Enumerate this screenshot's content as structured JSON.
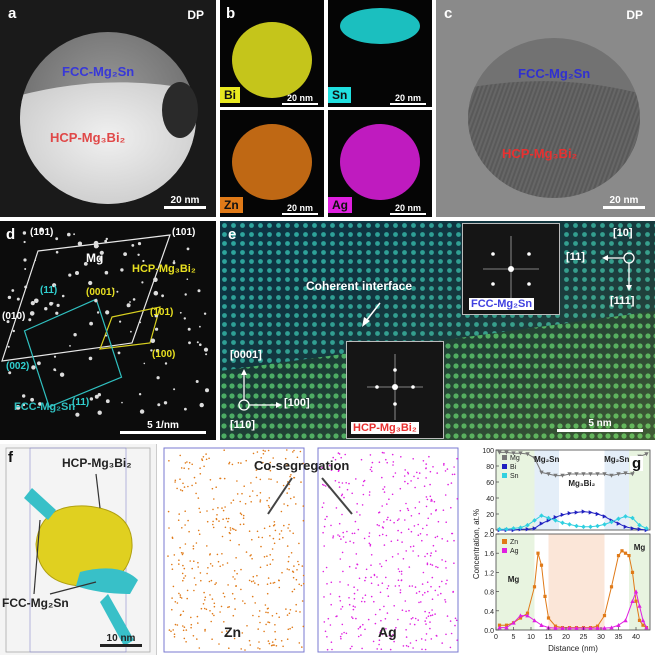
{
  "panel_a": {
    "label": "a",
    "mode": "DP",
    "phase_top": "FCC-Mg₂Sn",
    "phase_bottom": "HCP-Mg₃Bi₂",
    "scale": "20 nm"
  },
  "panel_b": {
    "label": "b",
    "maps": [
      {
        "element": "Bi",
        "color": "#e8e820",
        "scale": "20 nm"
      },
      {
        "element": "Sn",
        "color": "#20e0e0",
        "scale": "20 nm"
      },
      {
        "element": "Zn",
        "color": "#e07a18",
        "scale": "20 nm"
      },
      {
        "element": "Ag",
        "color": "#e020e0",
        "scale": "20 nm"
      }
    ]
  },
  "panel_c": {
    "label": "c",
    "mode": "DP",
    "phase_top": "FCC-Mg₂Sn",
    "phase_bottom": "HCP-Mg₃Bi₂",
    "scale": "20 nm"
  },
  "panel_d": {
    "label": "d",
    "mg": "Mg",
    "hcp": "HCP-Mg₃Bi₂",
    "fcc": "FCC-Mg₂Sn",
    "scale": "5 1/nm",
    "white_indices": [
      "(10$1)",
      "(1$01)",
      "(01$0)"
    ],
    "yellow_indices": [
      "(0001)",
      "(1$01)",
      "(1$00)"
    ],
    "cyan_indices": [
      "($11)",
      "(002)",
      "($11)"
    ]
  },
  "panel_e": {
    "label": "e",
    "interface": "Coherent interface",
    "fft_top": "FCC-Mg₂Sn",
    "fft_bottom": "HCP-Mg₃Bi₂",
    "scale": "5 nm",
    "axes_top": {
      "z": "[1$0]",
      "left": "[11$]",
      "down": "[111]"
    },
    "axes_bottom": {
      "up": "[0001]",
      "right": "[1$00]",
      "z": "[11$0]"
    }
  },
  "panel_f": {
    "label": "f",
    "hcp": "HCP-Mg₃Bi₂",
    "fcc": "FCC-Mg₂Sn",
    "coseg": "Co-segregation",
    "scale": "10 nm",
    "map_left": "Zn",
    "map_right": "Ag"
  },
  "panel_g": {
    "label": "g",
    "ylabel": "Concentration, at.%",
    "xlabel": "Distance (nm)",
    "top_regions": [
      "Mg₂Sn",
      "Mg₃Bi₂",
      "Mg₂Sn"
    ],
    "bottom_regions": [
      "Mg",
      "Mg"
    ],
    "legend_top": [
      "Mg",
      "Bi",
      "Sn"
    ],
    "legend_bottom": [
      "Zn",
      "Ag"
    ]
  },
  "chart_data": [
    {
      "type": "line",
      "x_label": "Distance (nm)",
      "y_label": "Concentration, at.%",
      "ylim": [
        0,
        100
      ],
      "yticks": [
        0,
        20,
        40,
        60,
        80,
        100
      ],
      "series": [
        {
          "name": "Mg",
          "color": "#777777",
          "x": [
            1,
            3,
            5,
            7,
            9,
            11,
            13,
            15,
            17,
            19,
            21,
            23,
            25,
            27,
            29,
            31,
            33,
            35,
            37,
            39,
            41,
            43
          ],
          "y": [
            97,
            97,
            96,
            96,
            95,
            90,
            72,
            70,
            68,
            68,
            70,
            70,
            70,
            70,
            70,
            70,
            68,
            70,
            71,
            70,
            92,
            95
          ]
        },
        {
          "name": "Bi",
          "color": "#2020c0",
          "x": [
            1,
            3,
            5,
            7,
            9,
            11,
            13,
            15,
            17,
            19,
            21,
            23,
            25,
            27,
            29,
            31,
            33,
            35,
            37,
            39,
            41,
            43
          ],
          "y": [
            0,
            0,
            0,
            1,
            1,
            2,
            8,
            12,
            16,
            19,
            21,
            22,
            23,
            22,
            20,
            17,
            12,
            8,
            4,
            2,
            1,
            0
          ]
        },
        {
          "name": "Sn",
          "color": "#30d0e0",
          "x": [
            1,
            3,
            5,
            7,
            9,
            11,
            13,
            15,
            17,
            19,
            21,
            23,
            25,
            27,
            29,
            31,
            33,
            35,
            37,
            39,
            41,
            43
          ],
          "y": [
            1,
            1,
            2,
            3,
            6,
            12,
            18,
            15,
            12,
            9,
            7,
            5,
            4,
            4,
            5,
            7,
            10,
            14,
            17,
            15,
            6,
            2
          ]
        }
      ]
    },
    {
      "type": "line",
      "x_label": "Distance (nm)",
      "y_label": "Concentration, at.%",
      "xlim": [
        0,
        44
      ],
      "xticks": [
        0,
        5,
        10,
        15,
        20,
        25,
        30,
        35,
        40
      ],
      "ylim": [
        0,
        2.0
      ],
      "yticks": [
        0.0,
        0.4,
        0.8,
        1.2,
        1.6,
        2.0
      ],
      "series": [
        {
          "name": "Zn",
          "color": "#e07a18",
          "x": [
            1,
            3,
            5,
            7,
            9,
            11,
            12,
            13,
            14,
            15,
            17,
            19,
            21,
            23,
            25,
            27,
            29,
            31,
            33,
            35,
            36,
            37,
            38,
            39,
            40,
            41,
            42,
            43
          ],
          "y": [
            0.1,
            0.1,
            0.15,
            0.25,
            0.35,
            0.9,
            1.6,
            1.35,
            0.7,
            0.25,
            0.08,
            0.05,
            0.05,
            0.05,
            0.05,
            0.05,
            0.08,
            0.3,
            0.9,
            1.55,
            1.65,
            1.6,
            1.55,
            1.2,
            0.6,
            0.2,
            0.1,
            0.05
          ]
        },
        {
          "name": "Ag",
          "color": "#e020e0",
          "x": [
            1,
            3,
            5,
            7,
            9,
            11,
            13,
            15,
            17,
            19,
            21,
            23,
            25,
            27,
            29,
            31,
            33,
            35,
            37,
            39,
            40,
            41,
            42,
            43
          ],
          "y": [
            0.05,
            0.05,
            0.15,
            0.3,
            0.3,
            0.2,
            0.1,
            0.05,
            0.04,
            0.04,
            0.04,
            0.04,
            0.04,
            0.04,
            0.04,
            0.04,
            0.05,
            0.1,
            0.2,
            0.6,
            0.8,
            0.5,
            0.2,
            0.05
          ]
        }
      ]
    }
  ]
}
